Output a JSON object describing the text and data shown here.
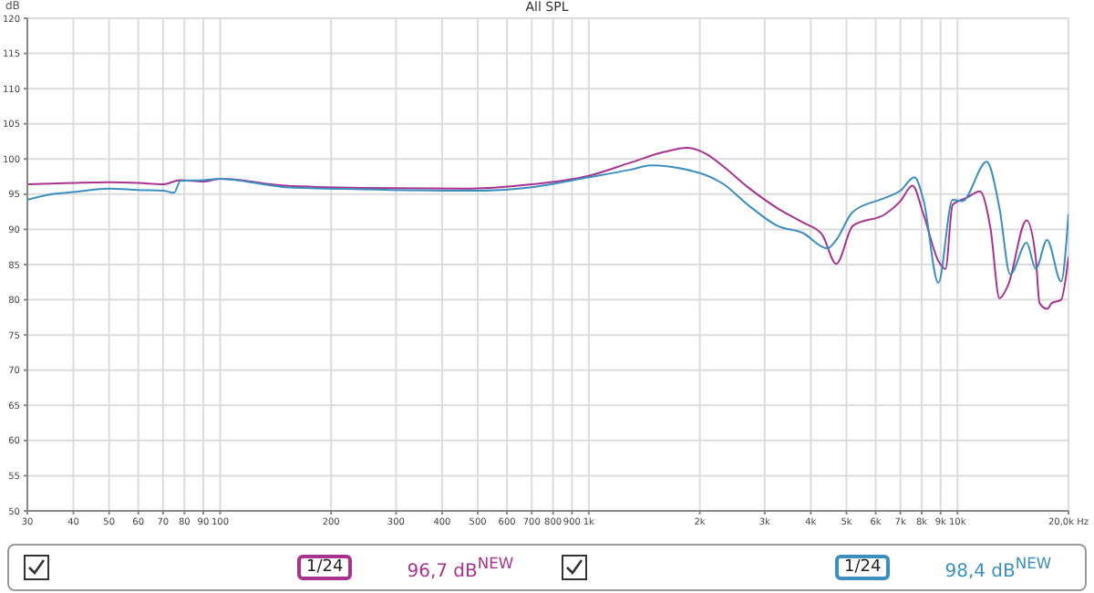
{
  "chart_data": {
    "type": "line",
    "title": "All SPL",
    "ylabel": "dB",
    "xlim": [
      30,
      20000
    ],
    "ylim": [
      50,
      120
    ],
    "log": "x",
    "grid": true,
    "marker": "none",
    "line_style": "solid",
    "xticks": [
      30,
      40,
      50,
      60,
      70,
      80,
      90,
      100,
      200,
      300,
      400,
      500,
      600,
      700,
      800,
      900,
      {
        "value": 1000,
        "label": "1k"
      },
      {
        "value": 2000,
        "label": "2k"
      },
      {
        "value": 3000,
        "label": "3k"
      },
      {
        "value": 4000,
        "label": "4k"
      },
      {
        "value": 5000,
        "label": "5k"
      },
      {
        "value": 6000,
        "label": "6k"
      },
      {
        "value": 7000,
        "label": "7k"
      },
      {
        "value": 8000,
        "label": "8k"
      },
      {
        "value": 9000,
        "label": "9k"
      },
      {
        "value": 10000,
        "label": "10k"
      },
      {
        "value": 20000,
        "label": "20,0k Hz"
      }
    ],
    "yticks": [
      50,
      55,
      60,
      65,
      70,
      75,
      80,
      85,
      90,
      95,
      100,
      105,
      110,
      115,
      120
    ],
    "series": [
      {
        "color": "#a8338f",
        "x": [
          30,
          40,
          50,
          60,
          70,
          78,
          90,
          100,
          150,
          242,
          477,
          700,
          1000,
          1300,
          1600,
          1850,
          2100,
          2310,
          2700,
          3250,
          3800,
          4290,
          4690,
          5200,
          6380,
          7000,
          7550,
          8100,
          8880,
          9280,
          9700,
          10600,
          11500,
          12300,
          13000,
          13700,
          15400,
          16300,
          16700,
          17500,
          18000,
          19100,
          20000
        ],
        "values": [
          96.4,
          96.6,
          96.7,
          96.6,
          96.4,
          97.0,
          96.8,
          97.2,
          96.2,
          95.9,
          95.8,
          96.4,
          97.6,
          99.5,
          101,
          101.6,
          100.6,
          99,
          96,
          93,
          91,
          89.3,
          85.1,
          90.5,
          92.2,
          94,
          96.2,
          92,
          85.5,
          84.4,
          93.5,
          94.5,
          95.4,
          90,
          80.2,
          82,
          91.3,
          86,
          79.5,
          78.7,
          79.5,
          80,
          86.1
        ]
      },
      {
        "color": "#3a8fbf",
        "x": [
          30,
          35,
          40,
          50,
          60,
          70,
          75,
          78,
          90,
          100,
          150,
          242,
          477,
          700,
          1000,
          1300,
          1474,
          1800,
          2310,
          2700,
          3250,
          3800,
          4440,
          4690,
          5200,
          6380,
          7000,
          7640,
          8100,
          8870,
          9700,
          10300,
          12000,
          13000,
          13900,
          15400,
          16300,
          17500,
          19100,
          20000
        ],
        "values": [
          94.2,
          95,
          95.3,
          95.8,
          95.6,
          95.5,
          95.2,
          96.9,
          97,
          97.2,
          96,
          95.7,
          95.5,
          96,
          97.4,
          98.5,
          99.1,
          98.6,
          96.5,
          93.5,
          90.5,
          89.5,
          87.3,
          88.5,
          92.5,
          94.5,
          95.5,
          97.4,
          94,
          82.4,
          94.2,
          94,
          99.6,
          93,
          83.6,
          88.1,
          84.4,
          88.5,
          82.6,
          92.2
        ]
      }
    ],
    "annotations": [
      "1/24",
      "96,7 dB$^{NEW}$",
      "1/24",
      "98,4 dB$^{NEW}$"
    ]
  }
}
